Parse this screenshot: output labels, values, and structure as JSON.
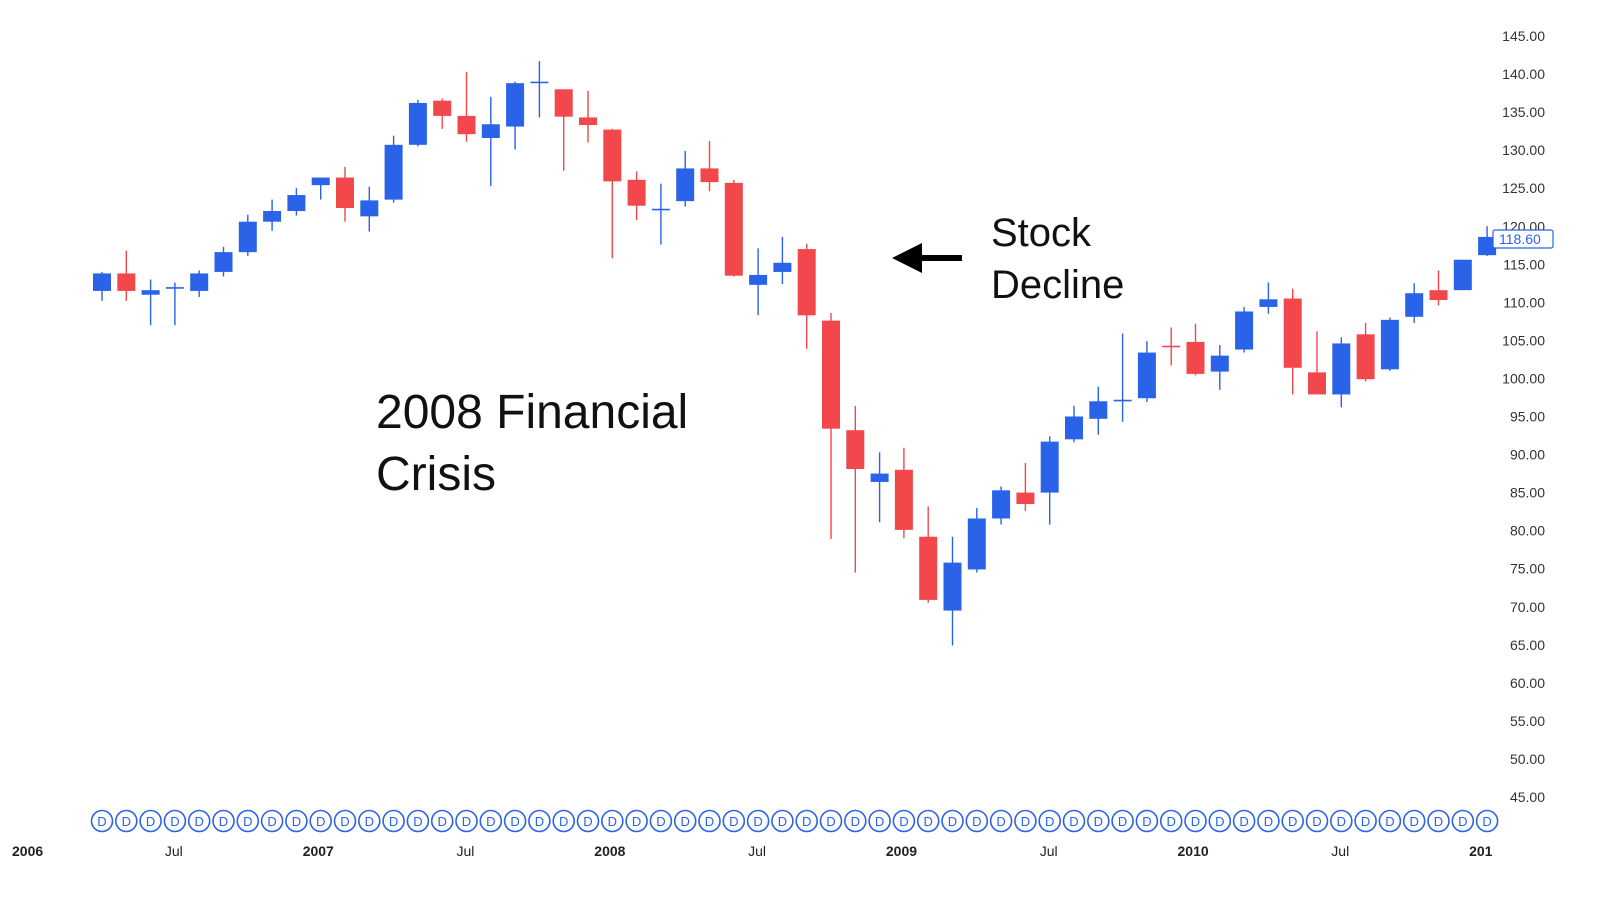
{
  "chart_data": {
    "type": "candlestick",
    "title": "",
    "xlabel": "",
    "ylabel": "",
    "ylim": [
      45,
      150
    ],
    "y_ticks": [
      "145.00",
      "140.00",
      "135.00",
      "130.00",
      "125.00",
      "120.00",
      "115.00",
      "110.00",
      "105.00",
      "100.00",
      "95.00",
      "90.00",
      "85.00",
      "80.00",
      "75.00",
      "70.00",
      "65.00",
      "60.00",
      "55.00",
      "50.00",
      "45.00"
    ],
    "y_tick_values": [
      145,
      140,
      135,
      130,
      125,
      120,
      115,
      110,
      105,
      100,
      95,
      90,
      85,
      80,
      75,
      70,
      65,
      60,
      55,
      50,
      45
    ],
    "x_ticks": [
      {
        "label": "2006",
        "index": -3,
        "major": true
      },
      {
        "label": "Jul",
        "index": 3,
        "major": false
      },
      {
        "label": "2007",
        "index": 9,
        "major": true
      },
      {
        "label": "Jul",
        "index": 15,
        "major": false
      },
      {
        "label": "2008",
        "index": 21,
        "major": true
      },
      {
        "label": "Jul",
        "index": 27,
        "major": false
      },
      {
        "label": "2009",
        "index": 33,
        "major": true
      },
      {
        "label": "Jul",
        "index": 39,
        "major": false
      },
      {
        "label": "2010",
        "index": 45,
        "major": true
      },
      {
        "label": "Jul",
        "index": 51,
        "major": false
      },
      {
        "label": "201",
        "index": 57,
        "major": true
      }
    ],
    "candles": [
      {
        "o": 111.5,
        "h": 114.0,
        "l": 110.2,
        "c": 113.8
      },
      {
        "o": 113.8,
        "h": 116.8,
        "l": 110.2,
        "c": 111.5
      },
      {
        "o": 111.0,
        "h": 113.0,
        "l": 107.0,
        "c": 111.6
      },
      {
        "o": 111.9,
        "h": 112.6,
        "l": 107.0,
        "c": 112.0
      },
      {
        "o": 111.5,
        "h": 114.2,
        "l": 110.7,
        "c": 113.8
      },
      {
        "o": 114.0,
        "h": 117.3,
        "l": 113.4,
        "c": 116.6
      },
      {
        "o": 116.6,
        "h": 121.5,
        "l": 116.1,
        "c": 120.6
      },
      {
        "o": 120.6,
        "h": 123.5,
        "l": 119.4,
        "c": 122.0
      },
      {
        "o": 122.0,
        "h": 125.0,
        "l": 121.4,
        "c": 124.1
      },
      {
        "o": 125.4,
        "h": 126.4,
        "l": 123.5,
        "c": 126.4
      },
      {
        "o": 126.4,
        "h": 127.8,
        "l": 120.6,
        "c": 122.4
      },
      {
        "o": 121.3,
        "h": 125.2,
        "l": 119.3,
        "c": 123.4
      },
      {
        "o": 123.5,
        "h": 131.9,
        "l": 123.1,
        "c": 130.7
      },
      {
        "o": 130.7,
        "h": 136.6,
        "l": 130.5,
        "c": 136.2
      },
      {
        "o": 136.5,
        "h": 136.8,
        "l": 132.8,
        "c": 134.5
      },
      {
        "o": 134.5,
        "h": 140.3,
        "l": 131.1,
        "c": 132.1
      },
      {
        "o": 131.6,
        "h": 137.0,
        "l": 125.3,
        "c": 133.4
      },
      {
        "o": 133.1,
        "h": 139.0,
        "l": 130.1,
        "c": 138.8
      },
      {
        "o": 139.0,
        "h": 141.7,
        "l": 134.3,
        "c": 139.0
      },
      {
        "o": 138.0,
        "h": 138.0,
        "l": 127.3,
        "c": 134.4
      },
      {
        "o": 134.3,
        "h": 137.8,
        "l": 131.0,
        "c": 133.3
      },
      {
        "o": 132.7,
        "h": 132.8,
        "l": 115.8,
        "c": 125.9
      },
      {
        "o": 126.1,
        "h": 127.2,
        "l": 120.8,
        "c": 122.7
      },
      {
        "o": 122.3,
        "h": 125.6,
        "l": 117.6,
        "c": 122.3
      },
      {
        "o": 123.3,
        "h": 129.9,
        "l": 122.6,
        "c": 127.6
      },
      {
        "o": 127.6,
        "h": 131.2,
        "l": 124.6,
        "c": 125.8
      },
      {
        "o": 125.7,
        "h": 126.1,
        "l": 113.4,
        "c": 113.5
      },
      {
        "o": 112.3,
        "h": 117.1,
        "l": 108.3,
        "c": 113.6
      },
      {
        "o": 114.0,
        "h": 118.6,
        "l": 112.4,
        "c": 115.2
      },
      {
        "o": 117.0,
        "h": 117.7,
        "l": 103.9,
        "c": 108.3
      },
      {
        "o": 107.6,
        "h": 108.6,
        "l": 78.9,
        "c": 93.4
      },
      {
        "o": 93.2,
        "h": 96.4,
        "l": 74.5,
        "c": 88.1
      },
      {
        "o": 86.4,
        "h": 90.3,
        "l": 81.1,
        "c": 87.5
      },
      {
        "o": 88.0,
        "h": 90.9,
        "l": 79.0,
        "c": 80.1
      },
      {
        "o": 79.2,
        "h": 83.2,
        "l": 70.5,
        "c": 70.9
      },
      {
        "o": 69.5,
        "h": 79.2,
        "l": 64.9,
        "c": 75.8
      },
      {
        "o": 74.9,
        "h": 83.0,
        "l": 74.5,
        "c": 81.6
      },
      {
        "o": 81.6,
        "h": 85.8,
        "l": 80.8,
        "c": 85.3
      },
      {
        "o": 85.0,
        "h": 88.9,
        "l": 82.6,
        "c": 83.5
      },
      {
        "o": 85.0,
        "h": 92.4,
        "l": 80.8,
        "c": 91.7
      },
      {
        "o": 92.0,
        "h": 96.4,
        "l": 91.6,
        "c": 95.0
      },
      {
        "o": 94.7,
        "h": 98.9,
        "l": 92.6,
        "c": 97.0
      },
      {
        "o": 97.1,
        "h": 105.9,
        "l": 94.3,
        "c": 97.2
      },
      {
        "o": 97.4,
        "h": 104.9,
        "l": 96.9,
        "c": 103.4
      },
      {
        "o": 104.3,
        "h": 106.7,
        "l": 101.7,
        "c": 104.2
      },
      {
        "o": 104.8,
        "h": 107.2,
        "l": 100.4,
        "c": 100.6
      },
      {
        "o": 100.9,
        "h": 104.4,
        "l": 98.5,
        "c": 103.0
      },
      {
        "o": 103.8,
        "h": 109.4,
        "l": 103.4,
        "c": 108.8
      },
      {
        "o": 109.4,
        "h": 112.6,
        "l": 108.5,
        "c": 110.4
      },
      {
        "o": 110.5,
        "h": 111.8,
        "l": 97.9,
        "c": 101.4
      },
      {
        "o": 100.8,
        "h": 106.2,
        "l": 97.9,
        "c": 97.9
      },
      {
        "o": 97.9,
        "h": 105.4,
        "l": 96.2,
        "c": 104.6
      },
      {
        "o": 105.8,
        "h": 107.3,
        "l": 99.6,
        "c": 99.9
      },
      {
        "o": 101.2,
        "h": 108.0,
        "l": 101.0,
        "c": 107.7
      },
      {
        "o": 108.1,
        "h": 112.5,
        "l": 107.3,
        "c": 111.2
      },
      {
        "o": 111.6,
        "h": 114.2,
        "l": 109.6,
        "c": 110.3
      },
      {
        "o": 111.6,
        "h": 115.6,
        "l": 111.6,
        "c": 115.6
      },
      {
        "o": 116.2,
        "h": 120.0,
        "l": 116.1,
        "c": 118.6
      }
    ],
    "last_price": "118.60",
    "legend": "none",
    "grid": false,
    "colors": {
      "up": "#2a62e8",
      "down": "#f2484b"
    },
    "dividend_marker": {
      "label": "D",
      "indices": [
        0,
        1,
        2,
        3,
        4,
        5,
        6,
        7,
        8,
        9,
        10,
        11,
        12,
        13,
        14,
        15,
        16,
        17,
        18,
        19,
        20,
        21,
        22,
        23,
        24,
        25,
        26,
        27,
        28,
        29,
        30,
        31,
        32,
        33,
        34,
        35,
        36,
        37,
        38,
        39,
        40,
        41,
        42,
        43,
        44,
        45,
        46,
        47,
        48,
        49,
        50,
        51,
        52,
        53,
        54,
        55,
        56,
        57
      ]
    },
    "annotations": [
      {
        "id": "stock-decline",
        "lines": [
          "Stock",
          "Decline"
        ]
      },
      {
        "id": "financial-crisis",
        "lines": [
          "2008 Financial",
          "Crisis"
        ]
      }
    ]
  }
}
